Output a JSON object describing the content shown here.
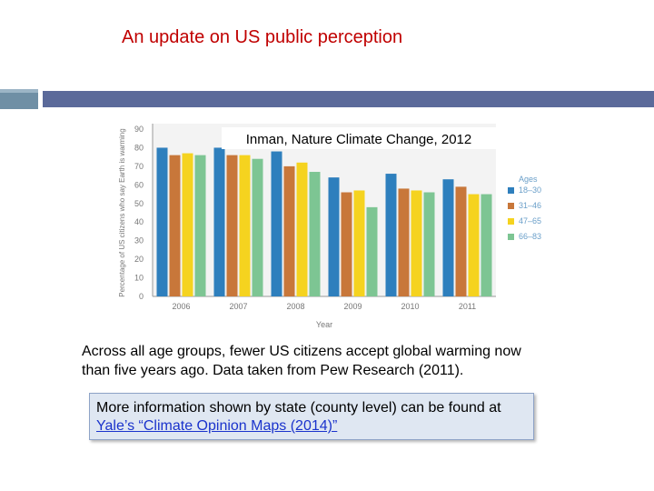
{
  "slide": {
    "title": "An update on US public perception",
    "caption_line1": "Across all age groups, fewer US citizens accept global warming now",
    "caption_line2": "than five years ago. Data taken from Pew Research (2011).",
    "info_text": "More information shown by state (county level) can be found at",
    "info_link": "Yale’s “Climate Opinion Maps (2014)”"
  },
  "chart_data": {
    "type": "bar",
    "title": "Inman, Nature Climate Change, 2012",
    "xlabel": "Year",
    "ylabel": "Percentage of US citizens who say Earth is warming",
    "ylim": [
      0,
      90
    ],
    "yticks": [
      "0",
      "10",
      "20",
      "30",
      "40",
      "50",
      "60",
      "70",
      "80",
      "90"
    ],
    "grid": false,
    "legend_position": "right",
    "legend_title": "Ages",
    "categories": [
      "2006",
      "2007",
      "2008",
      "2009",
      "2010",
      "2011"
    ],
    "series": [
      {
        "name": "18–30",
        "color": "#2e7fbd",
        "values": [
          80,
          80,
          78,
          64,
          66,
          63
        ]
      },
      {
        "name": "31–46",
        "color": "#c8773a",
        "values": [
          76,
          76,
          70,
          56,
          58,
          59
        ]
      },
      {
        "name": "47–65",
        "color": "#f5d31f",
        "values": [
          77,
          76,
          72,
          57,
          57,
          55
        ]
      },
      {
        "name": "66–83",
        "color": "#7dc593",
        "values": [
          76,
          74,
          67,
          48,
          56,
          55
        ]
      }
    ]
  }
}
